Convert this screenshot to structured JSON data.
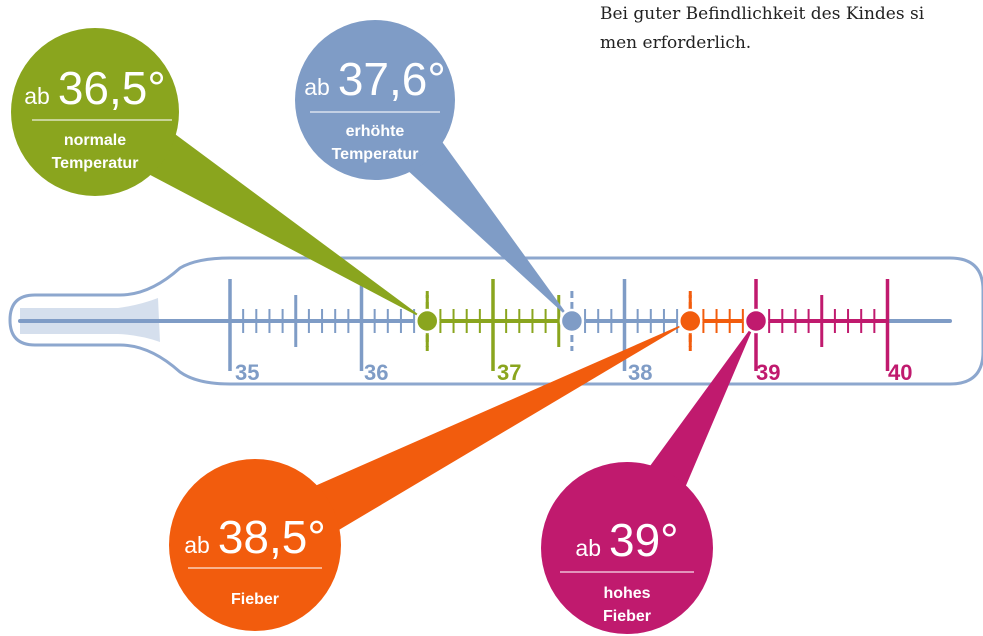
{
  "intro_text": {
    "line1": "Bei guter Befindlichkeit des Kindes si",
    "line2": "men erforderlich."
  },
  "scale": {
    "labels": [
      "35",
      "36",
      "37",
      "38",
      "39",
      "40"
    ],
    "range": [
      35,
      40
    ],
    "label_colors": [
      "#7f9cc6",
      "#7f9cc6",
      "#8aa51e",
      "#7f9cc6",
      "#c01a6e",
      "#c01a6e"
    ]
  },
  "callouts": [
    {
      "id": "normal",
      "prefix": "ab",
      "value": "36,5°",
      "threshold": 36.5,
      "line1": "normale",
      "line2": "Temperatur",
      "color": "#8aa51e"
    },
    {
      "id": "elevated",
      "prefix": "ab",
      "value": "37,6°",
      "threshold": 37.6,
      "line1": "erhöhte",
      "line2": "Temperatur",
      "color": "#7f9cc6"
    },
    {
      "id": "fever",
      "prefix": "ab",
      "value": "38,5°",
      "threshold": 38.5,
      "line1": "Fieber",
      "line2": "",
      "color": "#f25c0d"
    },
    {
      "id": "high-fever",
      "prefix": "ab",
      "value": "39°",
      "threshold": 39,
      "line1": "hohes",
      "line2": "Fieber",
      "color": "#c01a6e"
    }
  ],
  "colors": {
    "base": "#7f9cc6",
    "glass": "#8da7ce",
    "normal": "#8aa51e",
    "fever": "#f25c0d",
    "high": "#c01a6e"
  }
}
